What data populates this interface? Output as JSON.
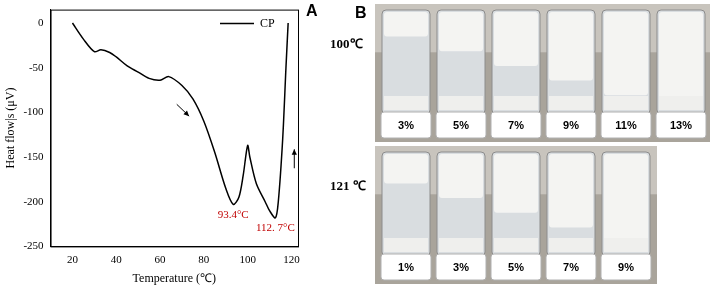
{
  "chart_data": {
    "type": "line",
    "title": "A",
    "x_label": "Temperature (℃)",
    "y_label": "Heat flow|s (μV)",
    "x": [
      20,
      25,
      30,
      33,
      37,
      40,
      45,
      50,
      55,
      60,
      64,
      70,
      75,
      80,
      85,
      90,
      93.4,
      96,
      98,
      100,
      101,
      104,
      108,
      110,
      112.7,
      114,
      116,
      117.5,
      118.5
    ],
    "series": [
      {
        "name": "CP",
        "color": "#000000",
        "values": [
          0,
          -18,
          -32,
          -30,
          -33,
          -38,
          -48,
          -55,
          -62,
          -64,
          -60,
          -70,
          -85,
          -110,
          -145,
          -185,
          -203,
          -195,
          -170,
          -137,
          -150,
          -180,
          -200,
          -210,
          -218,
          -200,
          -130,
          -50,
          0
        ]
      }
    ],
    "xlim": [
      10,
      123
    ],
    "xticks": [
      20,
      40,
      60,
      80,
      100,
      120
    ],
    "ylim": [
      -250,
      15
    ],
    "yticks": [
      -250,
      -200,
      -150,
      -100,
      -50,
      0
    ],
    "grid": false,
    "legend": "top-right",
    "marker": "none",
    "line_style": "solid",
    "annotations": [
      {
        "x": 93.4,
        "y": -203,
        "text": "93.4°C",
        "color": "#c00000"
      },
      {
        "x": 112.7,
        "y": -218,
        "text": "112. 7°C",
        "color": "#c00000"
      }
    ]
  },
  "panel_b": {
    "label": "B",
    "rows": [
      {
        "label": "100℃",
        "vials": [
          "3%",
          "5%",
          "7%",
          "9%",
          "11%",
          "13%"
        ]
      },
      {
        "label": "121 ℃",
        "vials": [
          "1%",
          "3%",
          "5%",
          "7%",
          "9%"
        ]
      }
    ]
  }
}
